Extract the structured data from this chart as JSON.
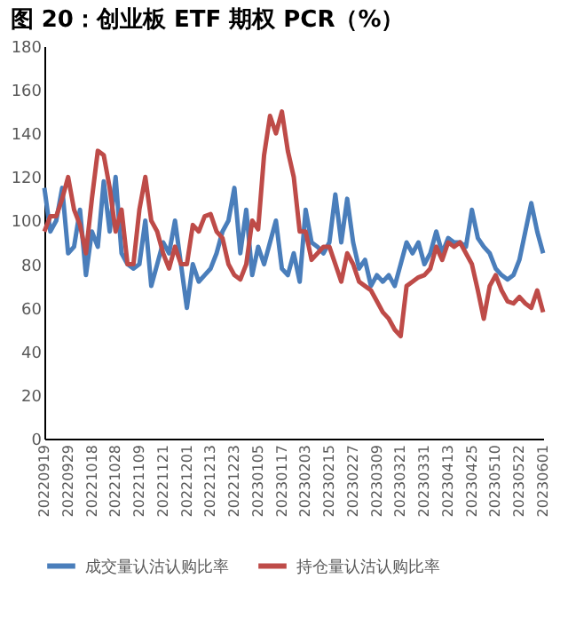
{
  "chart_data": {
    "type": "line",
    "title": "图 20：创业板 ETF 期权 PCR（%）",
    "categories": [
      "20220919",
      null,
      null,
      null,
      "20220929",
      null,
      null,
      null,
      "20221018",
      null,
      null,
      null,
      "20221028",
      null,
      null,
      null,
      "20221109",
      null,
      null,
      null,
      "20221121",
      null,
      null,
      null,
      "20221201",
      null,
      null,
      null,
      "20221213",
      null,
      null,
      null,
      "20221223",
      null,
      null,
      null,
      "20230105",
      null,
      null,
      null,
      "20230117",
      null,
      null,
      null,
      "20230203",
      null,
      null,
      null,
      "20230215",
      null,
      null,
      null,
      "20230227",
      null,
      null,
      null,
      "20230309",
      null,
      null,
      null,
      "20230321",
      null,
      null,
      null,
      "20230331",
      null,
      null,
      null,
      "20230413",
      null,
      null,
      null,
      "20230425",
      null,
      null,
      null,
      "20230510",
      null,
      null,
      null,
      "20230522",
      null,
      null,
      null,
      "20230601"
    ],
    "series": [
      {
        "name": "成交量认沽认购比率",
        "color": "#4a7ebb",
        "values": [
          115,
          95,
          100,
          115,
          85,
          88,
          105,
          75,
          95,
          88,
          118,
          95,
          120,
          85,
          80,
          78,
          80,
          100,
          70,
          80,
          90,
          85,
          100,
          80,
          60,
          80,
          72,
          75,
          78,
          85,
          95,
          100,
          115,
          85,
          105,
          75,
          88,
          80,
          90,
          100,
          78,
          75,
          85,
          72,
          105,
          90,
          88,
          85,
          90,
          112,
          90,
          110,
          90,
          78,
          82,
          70,
          75,
          72,
          75,
          70,
          80,
          90,
          85,
          90,
          80,
          85,
          95,
          85,
          92,
          90,
          90,
          88,
          105,
          92,
          88,
          85,
          78,
          75,
          73,
          75,
          82,
          95,
          108,
          95,
          85
        ]
      },
      {
        "name": "持仓量认沽认购比率",
        "color": "#be4b48",
        "values": [
          95,
          102,
          102,
          110,
          120,
          105,
          98,
          85,
          110,
          132,
          130,
          115,
          95,
          105,
          80,
          80,
          105,
          120,
          100,
          95,
          85,
          78,
          88,
          80,
          80,
          98,
          95,
          102,
          103,
          95,
          92,
          80,
          75,
          73,
          80,
          100,
          96,
          130,
          148,
          140,
          150,
          132,
          120,
          95,
          95,
          82,
          85,
          88,
          88,
          80,
          72,
          85,
          80,
          72,
          70,
          68,
          63,
          58,
          55,
          50,
          47,
          70,
          72,
          74,
          75,
          78,
          88,
          82,
          90,
          88,
          90,
          85,
          80,
          68,
          55,
          70,
          75,
          68,
          63,
          62,
          65,
          62,
          60,
          68,
          58
        ]
      }
    ],
    "ylim": [
      0,
      180
    ],
    "yticks": [
      0,
      20,
      40,
      60,
      80,
      100,
      120,
      140,
      160,
      180
    ],
    "legend": "bottom",
    "line_style": "solid",
    "marker": "none",
    "grid": false
  }
}
